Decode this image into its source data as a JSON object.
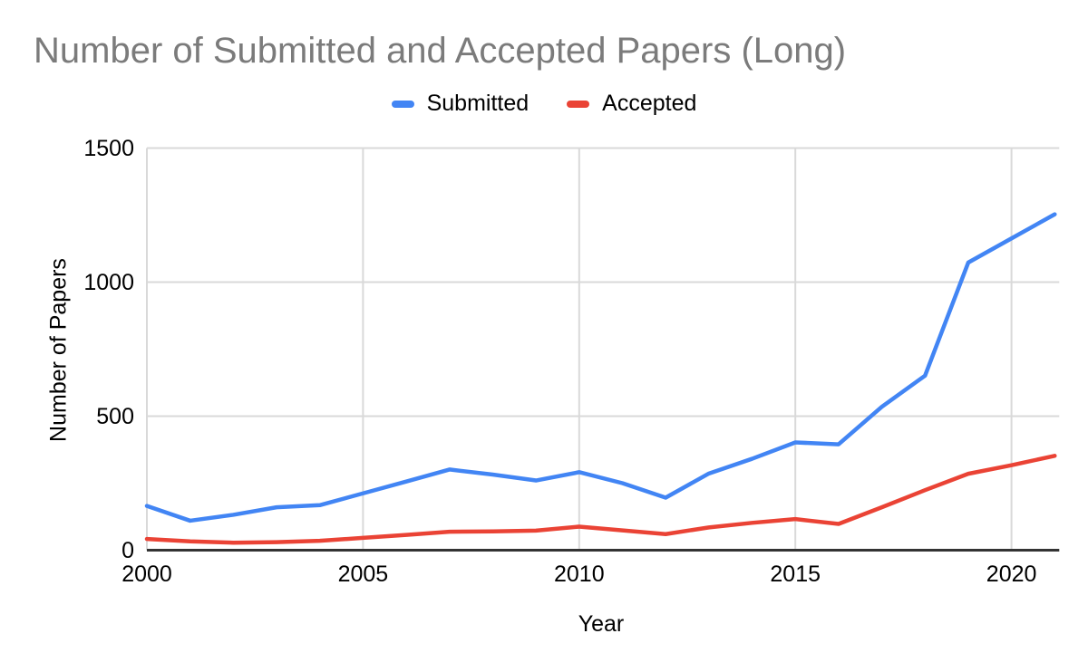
{
  "chart_data": {
    "type": "line",
    "title": "Number of Submitted and Accepted Papers (Long)",
    "xlabel": "Year",
    "ylabel": "Number of Papers",
    "x": [
      2000,
      2001,
      2002,
      2003,
      2004,
      2005,
      2006,
      2007,
      2008,
      2009,
      2010,
      2011,
      2012,
      2013,
      2014,
      2015,
      2016,
      2017,
      2018,
      2019,
      2020,
      2021
    ],
    "series": [
      {
        "name": "Submitted",
        "color": "#4285F4",
        "values": [
          165,
          110,
          132,
          160,
          168,
          212,
          256,
          301,
          282,
          260,
          291,
          250,
          196,
          286,
          341,
          402,
          395,
          535,
          651,
          1073,
          1163,
          1253
        ]
      },
      {
        "name": "Accepted",
        "color": "#EA4335",
        "values": [
          42,
          33,
          28,
          30,
          35,
          46,
          57,
          69,
          70,
          73,
          88,
          74,
          60,
          85,
          102,
          116,
          98,
          160,
          224,
          285,
          317,
          352
        ]
      }
    ],
    "x_ticks": [
      2000,
      2005,
      2010,
      2015,
      2020
    ],
    "y_ticks": [
      0,
      500,
      1000,
      1500
    ],
    "xlim": [
      2000,
      2021
    ],
    "ylim": [
      0,
      1500
    ],
    "grid": true,
    "legend_position": "top-center",
    "title_color": "#7b7b7b",
    "text_color": "#000000",
    "gridline_color": "#d9d9d9",
    "axis_line_color": "#333333",
    "background_color": "#ffffff"
  }
}
